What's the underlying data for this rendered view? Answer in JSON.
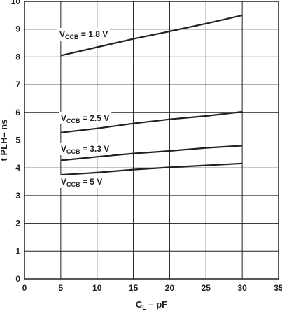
{
  "chart_data": {
    "type": "line",
    "title": "",
    "xlabel": {
      "main": "C",
      "sub": "L",
      "suffix": " – pF"
    },
    "ylabel": "t PLH– ns",
    "xlim": [
      0,
      35
    ],
    "ylim": [
      0,
      10
    ],
    "xticks": [
      0,
      5,
      10,
      15,
      20,
      25,
      30,
      35
    ],
    "yticks": [
      0,
      1,
      2,
      3,
      4,
      5,
      6,
      7,
      8,
      9,
      10
    ],
    "grid": true,
    "legend": "inline",
    "line_color": "#231f20",
    "grid_color": "#231f20",
    "series": [
      {
        "name": {
          "main": "V",
          "sub": "CCB",
          "suffix": " = 1.8 V"
        },
        "x": [
          5,
          10,
          15,
          20,
          25,
          30
        ],
        "y": [
          8.05,
          8.35,
          8.65,
          8.92,
          9.2,
          9.5
        ]
      },
      {
        "name": {
          "main": "V",
          "sub": "CCB",
          "suffix": " = 2.5 V"
        },
        "x": [
          5,
          10,
          15,
          20,
          25,
          30
        ],
        "y": [
          5.27,
          5.42,
          5.6,
          5.75,
          5.87,
          6.02
        ]
      },
      {
        "name": {
          "main": "V",
          "sub": "CCB",
          "suffix": " = 3.3 V"
        },
        "x": [
          5,
          10,
          15,
          20,
          25,
          30
        ],
        "y": [
          4.27,
          4.4,
          4.52,
          4.61,
          4.72,
          4.8
        ]
      },
      {
        "name": {
          "main": "V",
          "sub": "CCB",
          "suffix": " = 5 V"
        },
        "x": [
          5,
          10,
          15,
          20,
          25,
          30
        ],
        "y": [
          3.75,
          3.83,
          3.94,
          4.02,
          4.09,
          4.16
        ]
      }
    ]
  }
}
